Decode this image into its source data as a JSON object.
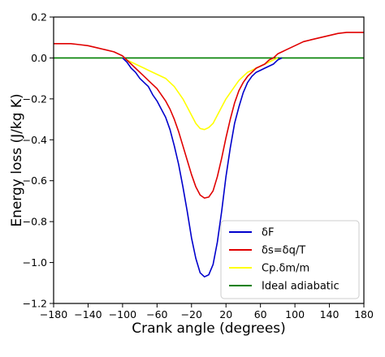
{
  "chart_data": {
    "type": "line",
    "title": "",
    "xlabel": "Crank angle (degrees)",
    "ylabel": "Energy loss (J/kg K)",
    "xlim": [
      -180,
      180
    ],
    "ylim": [
      -1.2,
      0.2
    ],
    "xticks": [
      -180,
      -140,
      -100,
      -60,
      -20,
      20,
      60,
      100,
      140,
      180
    ],
    "xtick_labels": [
      "−180",
      "−140",
      "−100",
      "−60",
      "−20",
      "20",
      "60",
      "100",
      "140",
      "180"
    ],
    "yticks": [
      0.2,
      0.0,
      -0.2,
      -0.4,
      -0.6,
      -0.8,
      -1.0,
      -1.2
    ],
    "ytick_labels": [
      "0.2",
      "0.0",
      "−0.2",
      "−0.4",
      "−0.6",
      "−0.8",
      "−1.0",
      "−1.2"
    ],
    "grid": false,
    "legend_position": "bottom-right",
    "series": [
      {
        "name": "δF",
        "color": "#0000cc",
        "x": [
          -100,
          -95,
          -90,
          -85,
          -80,
          -75,
          -70,
          -65,
          -60,
          -55,
          -50,
          -45,
          -40,
          -35,
          -30,
          -25,
          -20,
          -15,
          -10,
          -5,
          0,
          5,
          10,
          15,
          20,
          25,
          30,
          35,
          40,
          45,
          50,
          55,
          60,
          65,
          70,
          75,
          80,
          85
        ],
        "y": [
          0.0,
          -0.02,
          -0.05,
          -0.07,
          -0.1,
          -0.12,
          -0.14,
          -0.18,
          -0.21,
          -0.25,
          -0.29,
          -0.35,
          -0.43,
          -0.52,
          -0.63,
          -0.75,
          -0.88,
          -0.98,
          -1.05,
          -1.07,
          -1.06,
          -1.01,
          -0.9,
          -0.75,
          -0.58,
          -0.44,
          -0.32,
          -0.24,
          -0.17,
          -0.12,
          -0.09,
          -0.07,
          -0.06,
          -0.05,
          -0.04,
          -0.03,
          -0.01,
          0.0
        ]
      },
      {
        "name": "δs=δq/T",
        "color": "#e00000",
        "x": [
          -180,
          -170,
          -160,
          -150,
          -140,
          -130,
          -120,
          -110,
          -105,
          -100,
          -95,
          -90,
          -85,
          -80,
          -75,
          -70,
          -65,
          -60,
          -55,
          -50,
          -45,
          -40,
          -35,
          -30,
          -25,
          -20,
          -15,
          -10,
          -5,
          0,
          5,
          10,
          15,
          20,
          25,
          30,
          35,
          40,
          45,
          50,
          55,
          60,
          65,
          70,
          75,
          80,
          85,
          90,
          100,
          110,
          120,
          130,
          140,
          150,
          160,
          170,
          180
        ],
        "y": [
          0.07,
          0.07,
          0.07,
          0.065,
          0.06,
          0.05,
          0.04,
          0.03,
          0.02,
          0.01,
          -0.01,
          -0.03,
          -0.05,
          -0.07,
          -0.09,
          -0.11,
          -0.13,
          -0.15,
          -0.18,
          -0.21,
          -0.25,
          -0.3,
          -0.36,
          -0.43,
          -0.5,
          -0.57,
          -0.63,
          -0.67,
          -0.685,
          -0.68,
          -0.65,
          -0.58,
          -0.49,
          -0.39,
          -0.3,
          -0.22,
          -0.16,
          -0.12,
          -0.09,
          -0.07,
          -0.05,
          -0.04,
          -0.03,
          -0.01,
          0.0,
          0.02,
          0.03,
          0.04,
          0.06,
          0.08,
          0.09,
          0.1,
          0.11,
          0.12,
          0.125,
          0.125,
          0.125
        ]
      },
      {
        "name": "Cp.δm/m",
        "color": "#ffff00",
        "x": [
          -100,
          -95,
          -90,
          -85,
          -80,
          -75,
          -70,
          -65,
          -60,
          -55,
          -50,
          -45,
          -40,
          -35,
          -30,
          -25,
          -20,
          -15,
          -10,
          -5,
          0,
          5,
          10,
          15,
          20,
          25,
          30,
          35,
          40,
          45,
          50,
          55,
          60,
          65,
          70,
          75,
          80
        ],
        "y": [
          0.0,
          -0.01,
          -0.02,
          -0.03,
          -0.04,
          -0.05,
          -0.06,
          -0.07,
          -0.08,
          -0.09,
          -0.1,
          -0.12,
          -0.14,
          -0.17,
          -0.2,
          -0.24,
          -0.28,
          -0.32,
          -0.345,
          -0.35,
          -0.34,
          -0.32,
          -0.28,
          -0.24,
          -0.2,
          -0.17,
          -0.14,
          -0.11,
          -0.09,
          -0.07,
          -0.06,
          -0.05,
          -0.04,
          -0.03,
          -0.02,
          -0.01,
          0.0
        ]
      },
      {
        "name": "Ideal adiabatic",
        "color": "#008000",
        "x": [
          -180,
          180
        ],
        "y": [
          0.0,
          0.0
        ]
      }
    ]
  }
}
